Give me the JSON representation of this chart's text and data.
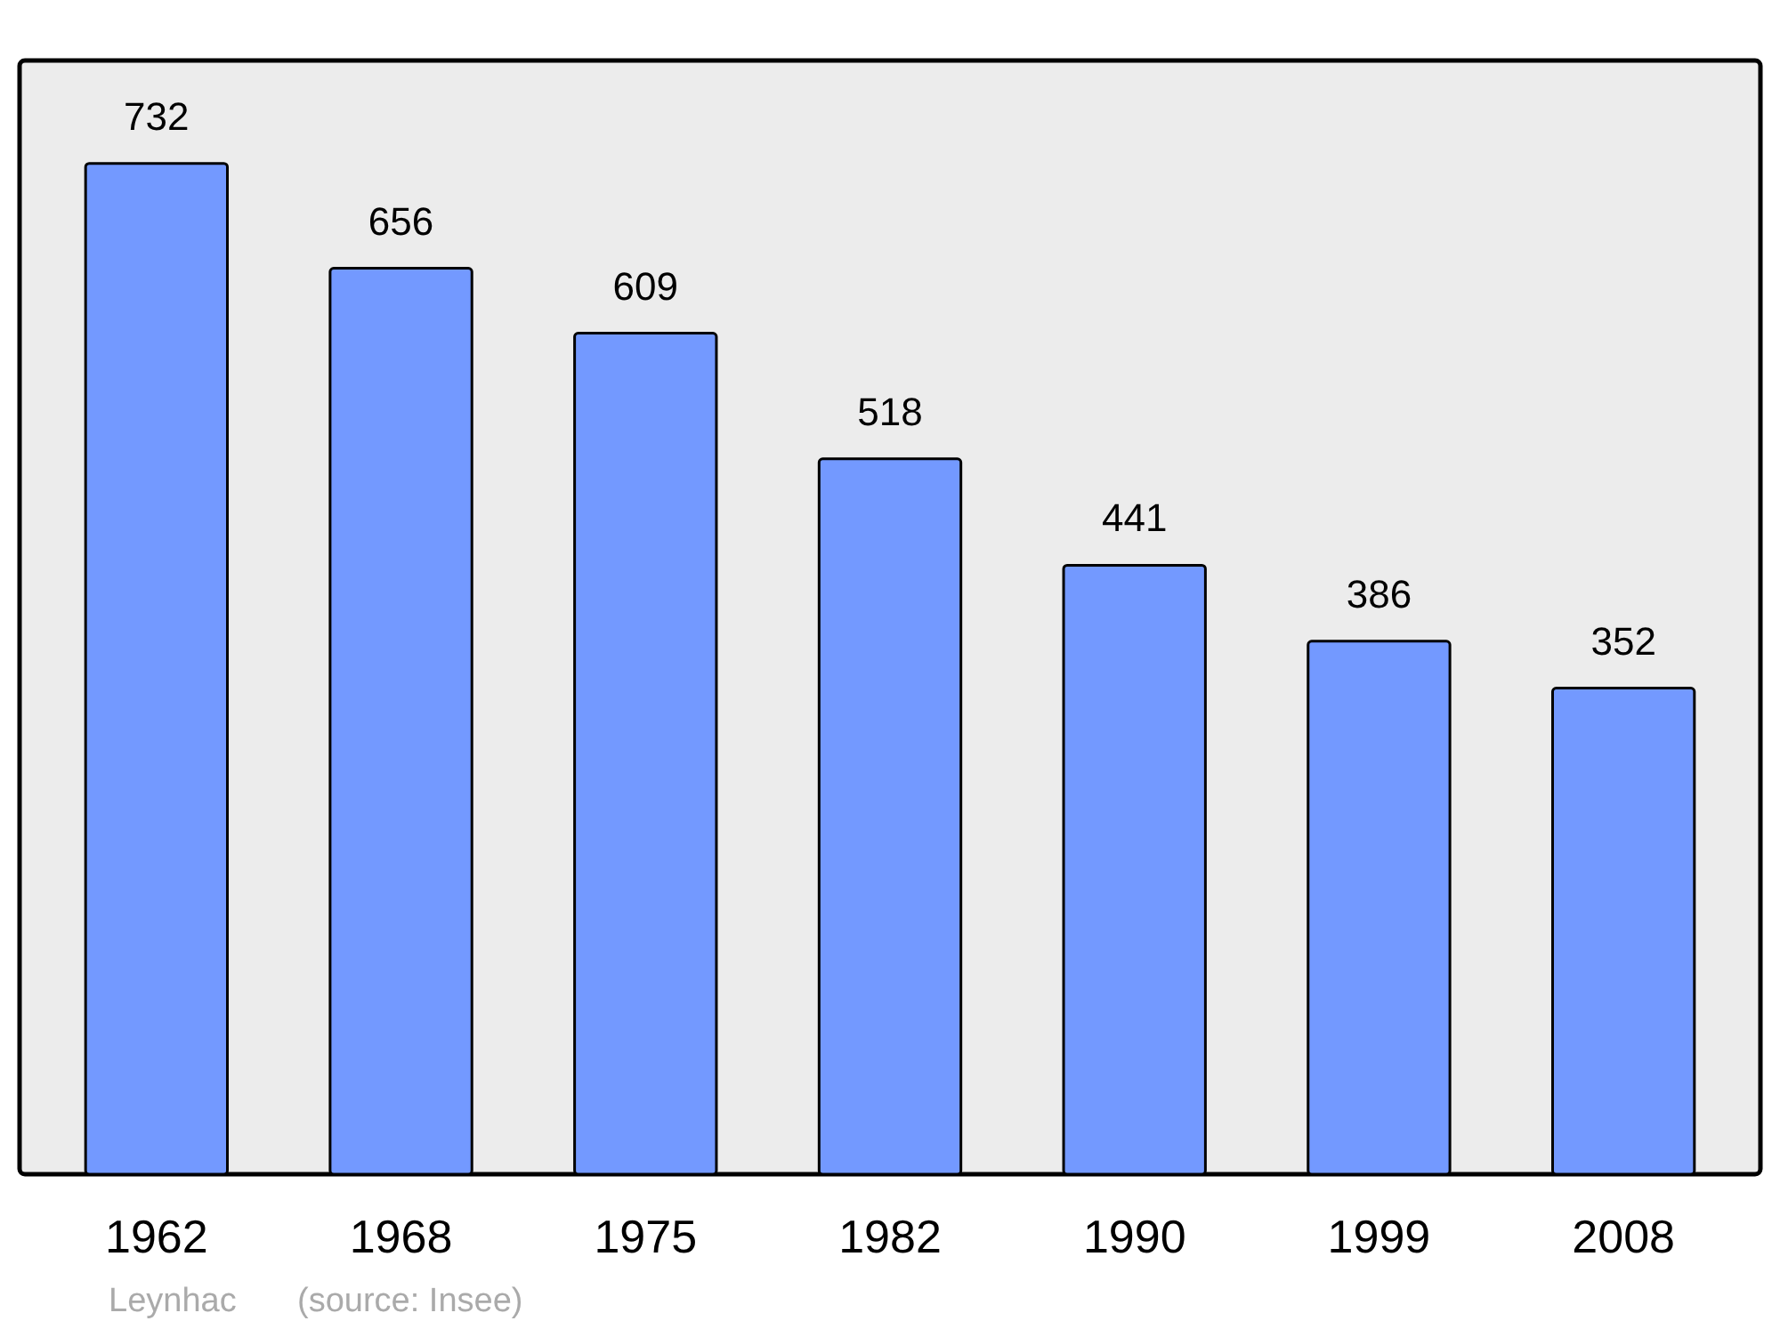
{
  "chart_data": {
    "type": "bar",
    "categories": [
      "1962",
      "1968",
      "1975",
      "1982",
      "1990",
      "1999",
      "2008"
    ],
    "values": [
      732,
      656,
      609,
      518,
      441,
      386,
      352
    ],
    "color": "#7399ff",
    "data_labels": true,
    "annotations": [
      "Leynhac",
      "(source: Insee)"
    ]
  }
}
